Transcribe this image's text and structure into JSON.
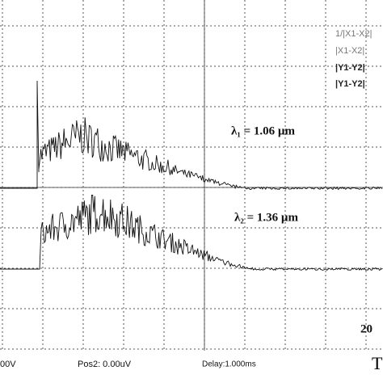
{
  "cursor_readout": [
    "1/|X1-X2|",
    "|X1-X2|",
    "|Y1-Y2|",
    "|Y1-Y2|"
  ],
  "annotations": [
    "λ₁ = 1.06 µm",
    "λ₂ = 1.36 µm"
  ],
  "corner_text": "20",
  "status_bar": {
    "ch1": "00V",
    "pos2": "Pos2:  0.00uV",
    "delay": "Delay:1.000ms",
    "trigger": "T"
  }
}
